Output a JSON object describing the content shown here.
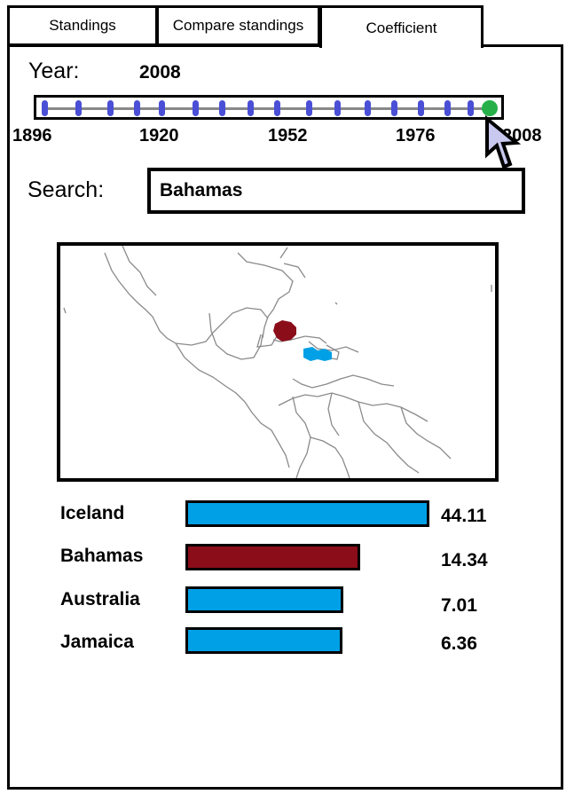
{
  "tabs": [
    {
      "label": "Standings",
      "active": false
    },
    {
      "label": "Compare standings",
      "active": false
    },
    {
      "label": "Coefficient",
      "active": true
    }
  ],
  "year": {
    "label": "Year:",
    "value": "2008"
  },
  "slider": {
    "min": 1896,
    "max": 2008,
    "selected": 2008,
    "axis_labels": [
      "1896",
      "1920",
      "1952",
      "1976",
      "2008"
    ]
  },
  "search": {
    "label": "Search:",
    "value": "Bahamas"
  },
  "map": {
    "highlighted": "Bahamas"
  },
  "colors": {
    "highlight": "#8b0d1a",
    "default_bar": "#00a0e6",
    "tick": "#4a4fd6",
    "thumb": "#27b04a"
  },
  "coefficients": [
    {
      "country": "Iceland",
      "value": "44.11",
      "num": 44.11,
      "highlighted": false
    },
    {
      "country": "Bahamas",
      "value": "14.34",
      "num": 14.34,
      "highlighted": true
    },
    {
      "country": "Australia",
      "value": "7.01",
      "num": 7.01,
      "highlighted": false
    },
    {
      "country": "Jamaica",
      "value": "6.36",
      "num": 6.36,
      "highlighted": false
    }
  ]
}
